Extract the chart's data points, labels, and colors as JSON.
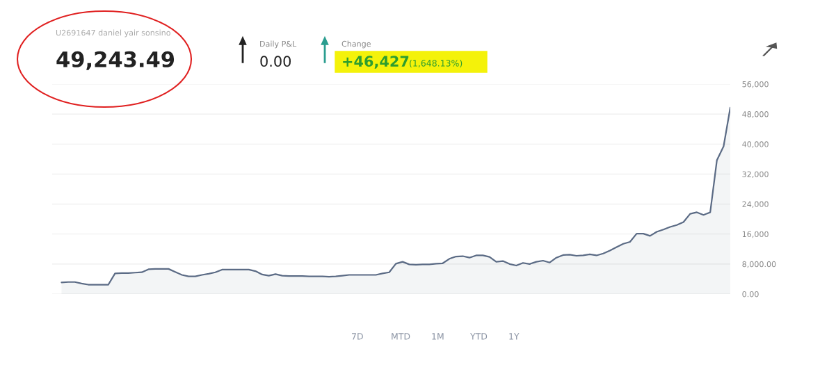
{
  "chart_data": {
    "type": "area",
    "categories": [
      null,
      null,
      null,
      null,
      null,
      null,
      null,
      null,
      null,
      null,
      null,
      null,
      null,
      null,
      null,
      null,
      null,
      null,
      null,
      null,
      null,
      null,
      null,
      null,
      null,
      null,
      null,
      null,
      null,
      null,
      null,
      null,
      null,
      null,
      null,
      null,
      null,
      null,
      null,
      null,
      null,
      null,
      null,
      null,
      null,
      null,
      null,
      null,
      null,
      null,
      null,
      null,
      null,
      null,
      null,
      null,
      null,
      null,
      null,
      null,
      null,
      null,
      null,
      null,
      null,
      null,
      null,
      null,
      null,
      null,
      null,
      null,
      null,
      null,
      null,
      null,
      null,
      null,
      null,
      null,
      null,
      null,
      null,
      null,
      null,
      null,
      null,
      null,
      null,
      null,
      null,
      null,
      null,
      null,
      null,
      null,
      null,
      null,
      null,
      null,
      null
    ],
    "series": [
      {
        "color": "#5b6b85",
        "values": [
          3100,
          3200,
          3200,
          2800,
          2500,
          2500,
          2500,
          2500,
          5500,
          5600,
          5600,
          5700,
          5800,
          6600,
          6700,
          6700,
          6700,
          5900,
          5100,
          4700,
          4700,
          5100,
          5400,
          5800,
          6500,
          6500,
          6500,
          6500,
          6500,
          6100,
          5200,
          4900,
          5300,
          4900,
          4800,
          4800,
          4800,
          4700,
          4700,
          4700,
          4600,
          4700,
          4900,
          5100,
          5100,
          5100,
          5100,
          5100,
          5500,
          5800,
          8100,
          8600,
          7900,
          7800,
          7900,
          7900,
          8100,
          8200,
          9400,
          10000,
          10100,
          9700,
          10300,
          10300,
          9900,
          8600,
          8800,
          8000,
          7600,
          8300,
          8000,
          8600,
          8900,
          8400,
          9700,
          10400,
          10500,
          10200,
          10300,
          10600,
          10300,
          10800,
          11600,
          12500,
          13400,
          13900,
          16100,
          16100,
          15500,
          16600,
          17200,
          17900,
          18400,
          19200,
          21400,
          21800,
          21100,
          21800,
          35700,
          39400,
          49700
        ]
      }
    ],
    "ylim": [
      0,
      56000
    ],
    "yticks": [
      {
        "value": 0,
        "label": "0.00"
      },
      {
        "value": 8000,
        "label": "8,000.00"
      },
      {
        "value": 16000,
        "label": "16,000"
      },
      {
        "value": 24000,
        "label": "24,000"
      },
      {
        "value": 32000,
        "label": "32,000"
      },
      {
        "value": 40000,
        "label": "40,000"
      },
      {
        "value": 48000,
        "label": "48,000"
      },
      {
        "value": 56000,
        "label": "56,000"
      }
    ],
    "tick_labels": "y",
    "grid": "y",
    "legend": false,
    "annotations": [
      "U2691647 daniel yair sonsino",
      "49,243.49",
      "Daily P&L",
      "0.00",
      "Change",
      "+46,427",
      "(1,648.13%)",
      "7D",
      "MTD",
      "1M",
      "YTD",
      "1Y"
    ]
  }
}
